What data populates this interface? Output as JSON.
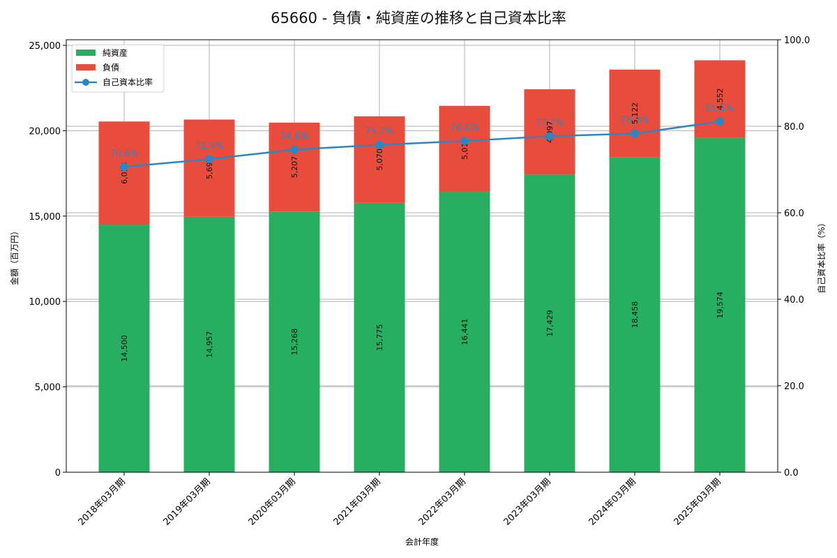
{
  "chart_data": {
    "type": "bar",
    "subtype": "stacked_bar_with_line_secondary_axis",
    "title": "65660 - 負債・純資産の推移と自己資本比率",
    "xlabel": "会計年度",
    "ylabel": "金額（百万円）",
    "y2label": "自己資本比率（%）",
    "ylim": [
      0,
      25327
    ],
    "y2lim": [
      0,
      100
    ],
    "yticks": [
      "0",
      "5,000",
      "10,000",
      "15,000",
      "20,000",
      "25,000"
    ],
    "y2ticks": [
      "0.0",
      "20.0",
      "40.0",
      "60.0",
      "80.0",
      "100.0"
    ],
    "grid": true,
    "legend_position": "upper left",
    "categories": [
      "2018年03月期",
      "2019年03月期",
      "2020年03月期",
      "2021年03月期",
      "2022年03月期",
      "2023年03月期",
      "2024年03月期",
      "2025年03月期"
    ],
    "series": [
      {
        "name": "純資産",
        "type": "bar",
        "stack": 0,
        "color": "#27ae60",
        "values": [
          14500,
          14957,
          15268,
          15775,
          16441,
          17429,
          18458,
          19574
        ],
        "labels": [
          "14,500",
          "14,957",
          "15,268",
          "15,775",
          "16,441",
          "17,429",
          "18,458",
          "19,574"
        ]
      },
      {
        "name": "負債",
        "type": "bar",
        "stack": 1,
        "color": "#e74c3c",
        "values": [
          6038,
          5696,
          5207,
          5070,
          5016,
          4997,
          5122,
          4552
        ],
        "labels": [
          "6,038",
          "5,696",
          "5,207",
          "5,070",
          "5,016",
          "4,997",
          "5,122",
          "4,552"
        ]
      },
      {
        "name": "自己資本比率",
        "type": "line",
        "axis": "y2",
        "color": "#2e86c1",
        "values": [
          70.6,
          72.4,
          74.6,
          75.7,
          76.6,
          77.7,
          78.3,
          81.1
        ],
        "labels": [
          "70.6%",
          "72.4%",
          "74.6%",
          "75.7%",
          "76.6%",
          "77.7%",
          "78.3%",
          "81.1%"
        ]
      }
    ]
  }
}
